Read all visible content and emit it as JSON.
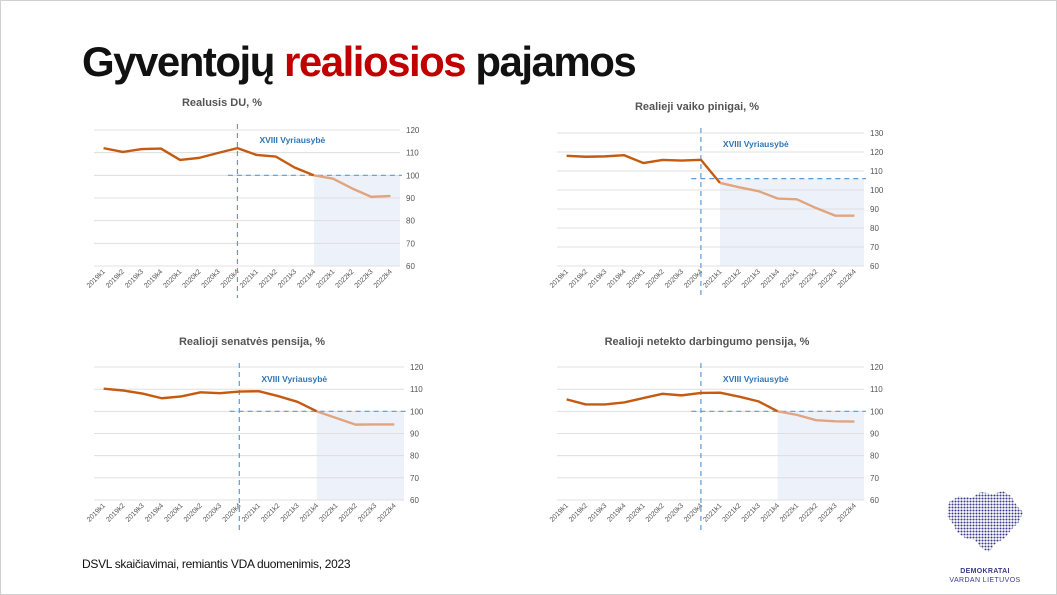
{
  "title_part1": "Gyventojų ",
  "title_accent": "realiosios",
  "title_part2": " pajamos",
  "source": "DSVL skaičiavimai, remiantis VDA duomenimis, 2023",
  "logo": {
    "line1": "DEMOKRATAI",
    "line2": "VARDAN LIETUVOS",
    "icon": "lithuania-map-icon"
  },
  "colors": {
    "line_before": "#c55a11",
    "line_after": "#e2a47f",
    "shade": "#edf2fa",
    "dashed": "#5b9bd5",
    "annotation": "#2e75b6"
  },
  "chart_data": [
    {
      "type": "line",
      "title": "Realusis DU, %",
      "annotation": "XVIII Vyriausybė",
      "categories": [
        "2019k1",
        "2019k2",
        "2019k3",
        "2019k4",
        "2020k1",
        "2020k2",
        "2020k3",
        "2020k4",
        "2021k1",
        "2021k2",
        "2021k3",
        "2021k4",
        "2022k1",
        "2022k2",
        "2022k3",
        "2022k4"
      ],
      "values": [
        112.0,
        110.3,
        111.6,
        111.8,
        106.8,
        107.7,
        109.9,
        112.0,
        109.0,
        108.3,
        103.4,
        100.0,
        98.5,
        94.2,
        90.5,
        90.9
      ],
      "ylim": [
        60,
        120
      ],
      "yticks": [
        60,
        70,
        80,
        90,
        100,
        110,
        120
      ],
      "government_start_index": 7,
      "shaded_start_index": 11,
      "reference_value": 100,
      "reference_from_index": 6.5
    },
    {
      "type": "line",
      "title": "Realieji vaiko pinigai, %",
      "annotation": "XVIII Vyriausybė",
      "categories": [
        "2019k1",
        "2019k2",
        "2019k3",
        "2019k4",
        "2020k1",
        "2020k2",
        "2020k3",
        "2020k4",
        "2021k1",
        "2021k2",
        "2021k3",
        "2021k4",
        "2022k1",
        "2022k2",
        "2022k3",
        "2022k4"
      ],
      "values": [
        118.0,
        117.5,
        117.7,
        118.3,
        114.2,
        115.8,
        115.5,
        115.9,
        103.7,
        101.4,
        99.4,
        95.5,
        95.1,
        90.5,
        86.5,
        86.5
      ],
      "ylim": [
        60,
        130
      ],
      "yticks": [
        60,
        70,
        80,
        90,
        100,
        110,
        120,
        130
      ],
      "government_start_index": 7,
      "shaded_start_index": 8,
      "reference_value": 106,
      "reference_from_index": 6.5
    },
    {
      "type": "line",
      "title": "Realioji senatvės pensija, %",
      "annotation": "XVIII Vyriausybė",
      "categories": [
        "2019k1",
        "2019k2",
        "2019k3",
        "2019k4",
        "2020k1",
        "2020k2",
        "2020k3",
        "2020k4",
        "2021k1",
        "2021k2",
        "2021k3",
        "2021k4",
        "2022k1",
        "2022k2",
        "2022k3",
        "2022k4"
      ],
      "values": [
        110.2,
        109.4,
        108.0,
        105.9,
        106.7,
        108.6,
        108.2,
        108.9,
        109.1,
        106.9,
        104.3,
        100.0,
        97.0,
        94.0,
        94.1,
        94.1
      ],
      "ylim": [
        60,
        120
      ],
      "yticks": [
        60,
        70,
        80,
        90,
        100,
        110,
        120
      ],
      "government_start_index": 7,
      "shaded_start_index": 11,
      "reference_value": 100,
      "reference_from_index": 6.5
    },
    {
      "type": "line",
      "title": "Realioji netekto darbingumo pensija, %",
      "annotation": "XVIII Vyriausybė",
      "categories": [
        "2019k1",
        "2019k2",
        "2019k3",
        "2019k4",
        "2020k1",
        "2020k2",
        "2020k3",
        "2020k4",
        "2021k1",
        "2021k2",
        "2021k3",
        "2021k4",
        "2022k1",
        "2022k2",
        "2022k3",
        "2022k4"
      ],
      "values": [
        105.4,
        103.1,
        103.1,
        104.0,
        106.0,
        107.9,
        107.2,
        108.3,
        108.4,
        106.6,
        104.5,
        100.0,
        98.4,
        96.0,
        95.5,
        95.4
      ],
      "ylim": [
        60,
        120
      ],
      "yticks": [
        60,
        70,
        80,
        90,
        100,
        110,
        120
      ],
      "government_start_index": 7,
      "shaded_start_index": 11,
      "reference_value": 100,
      "reference_from_index": 6.5
    }
  ]
}
